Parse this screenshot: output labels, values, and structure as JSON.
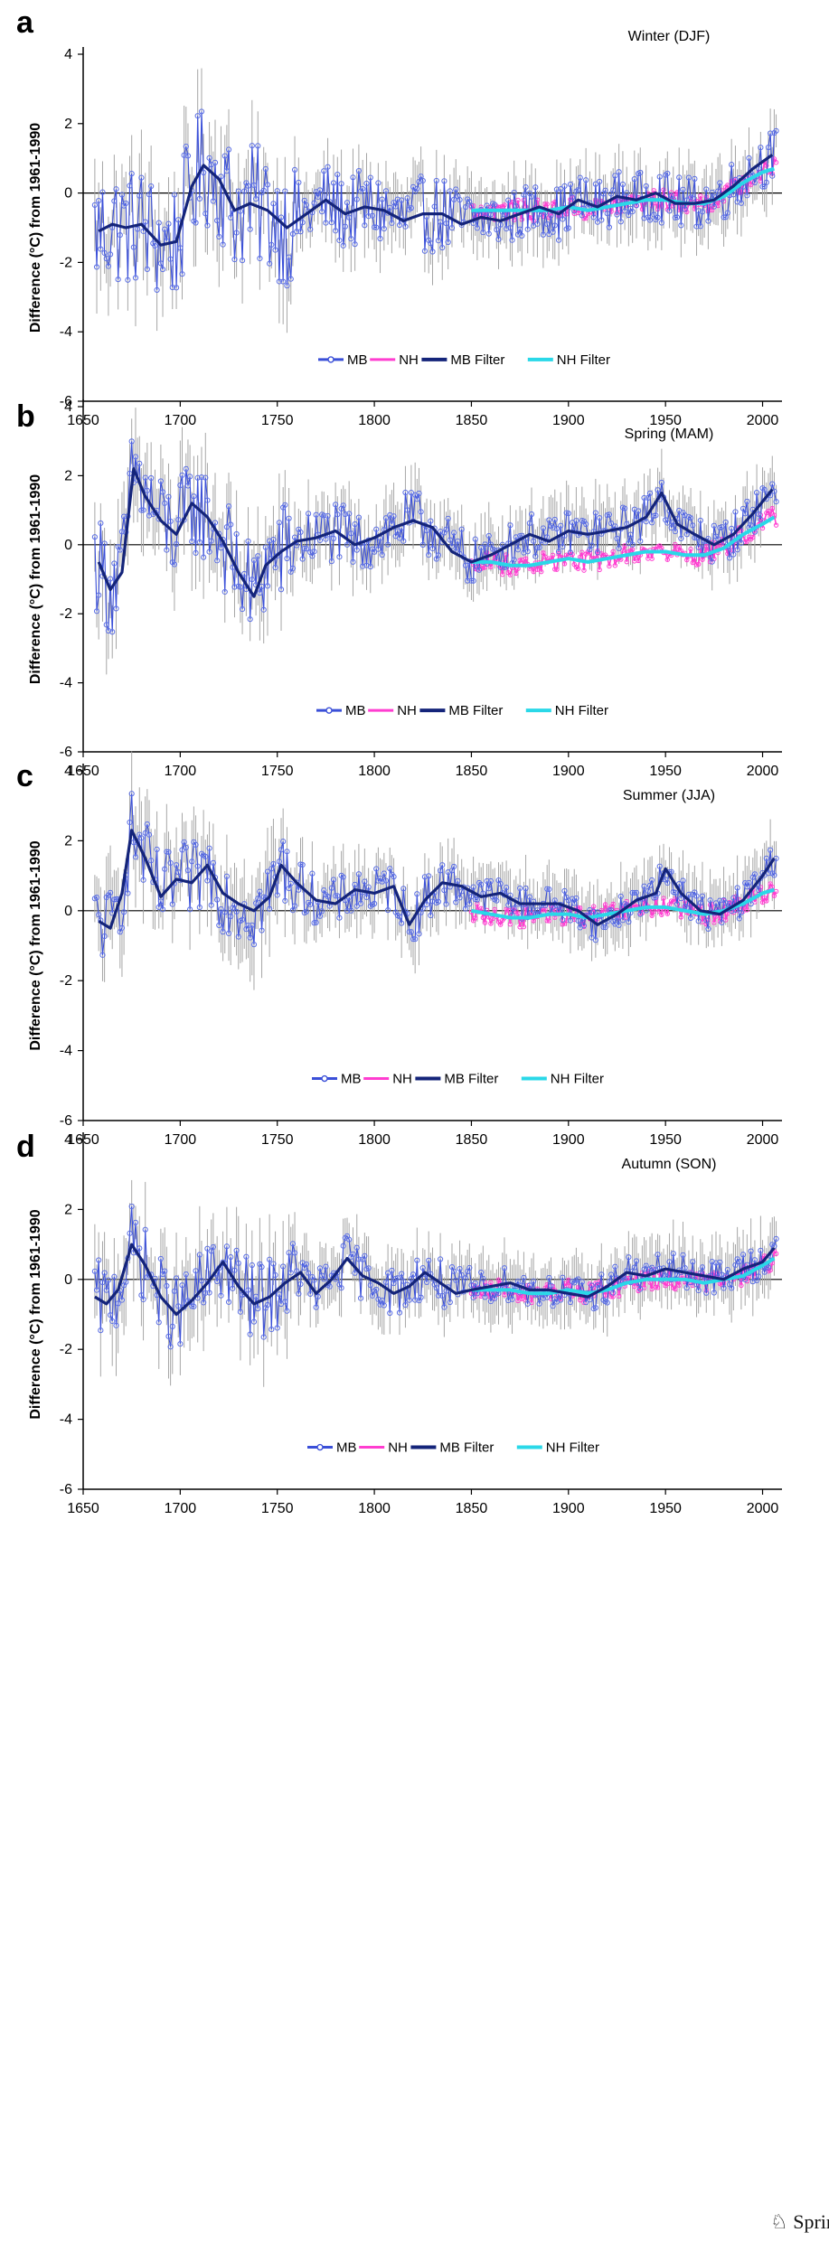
{
  "publisher": "Springer",
  "colors": {
    "mb": "#3a4fd8",
    "mb_marker": "#5b6fe4",
    "nh": "#ff3dd0",
    "mb_filter": "#14247a",
    "nh_filter": "#2ad8e8",
    "error_bar": "#a6a6a6",
    "axis": "#000000"
  },
  "chart_data": [
    {
      "panel": "a",
      "title": "Winter (DJF)",
      "type": "line",
      "ylabel": "Difference (°C) from 1961-1990",
      "xlim": [
        1650,
        2010
      ],
      "ylim": [
        -6,
        4
      ],
      "xticks": [
        1650,
        1700,
        1750,
        1800,
        1850,
        1900,
        1950,
        2000
      ],
      "yticks": [
        4,
        2,
        0,
        -2,
        -4,
        -6
      ],
      "grid": false,
      "legend_position": "bottom-center",
      "legend": [
        "MB",
        "NH",
        "MB Filter",
        "NH Filter"
      ],
      "series": [
        {
          "name": "MB Filter",
          "x": [
            1658,
            1665,
            1672,
            1680,
            1690,
            1698,
            1706,
            1712,
            1720,
            1728,
            1736,
            1745,
            1755,
            1765,
            1775,
            1785,
            1795,
            1805,
            1815,
            1825,
            1835,
            1845,
            1855,
            1865,
            1875,
            1885,
            1895,
            1905,
            1915,
            1925,
            1935,
            1945,
            1955,
            1965,
            1975,
            1985,
            1995,
            2005
          ],
          "y": [
            -1.1,
            -0.9,
            -1.0,
            -0.9,
            -1.5,
            -1.4,
            0.2,
            0.8,
            0.4,
            -0.5,
            -0.3,
            -0.5,
            -1.0,
            -0.6,
            -0.2,
            -0.6,
            -0.4,
            -0.5,
            -0.8,
            -0.6,
            -0.6,
            -0.9,
            -0.7,
            -0.8,
            -0.6,
            -0.4,
            -0.6,
            -0.2,
            -0.4,
            -0.1,
            -0.2,
            0.0,
            -0.3,
            -0.3,
            -0.2,
            0.2,
            0.7,
            1.1
          ]
        },
        {
          "name": "NH Filter",
          "x": [
            1850,
            1860,
            1870,
            1880,
            1890,
            1900,
            1910,
            1920,
            1930,
            1940,
            1950,
            1960,
            1970,
            1980,
            1990,
            2000,
            2006
          ],
          "y": [
            -0.5,
            -0.5,
            -0.5,
            -0.5,
            -0.5,
            -0.4,
            -0.5,
            -0.4,
            -0.3,
            -0.2,
            -0.2,
            -0.3,
            -0.3,
            -0.1,
            0.3,
            0.6,
            0.7
          ]
        }
      ]
    },
    {
      "panel": "b",
      "title": "Spring (MAM)",
      "type": "line",
      "ylabel": "Difference (°C) from 1961-1990",
      "xlim": [
        1650,
        2010
      ],
      "ylim": [
        -6,
        4
      ],
      "xticks": [
        1650,
        1700,
        1750,
        1800,
        1850,
        1900,
        1950,
        2000
      ],
      "yticks": [
        4,
        2,
        0,
        -2,
        -4,
        -6
      ],
      "grid": false,
      "legend_position": "bottom-center",
      "legend": [
        "MB",
        "NH",
        "MB Filter",
        "NH Filter"
      ],
      "series": [
        {
          "name": "MB Filter",
          "x": [
            1658,
            1664,
            1670,
            1676,
            1682,
            1690,
            1698,
            1706,
            1714,
            1722,
            1730,
            1738,
            1744,
            1752,
            1760,
            1770,
            1780,
            1790,
            1800,
            1810,
            1820,
            1830,
            1840,
            1850,
            1860,
            1870,
            1880,
            1890,
            1900,
            1910,
            1920,
            1930,
            1940,
            1948,
            1956,
            1965,
            1975,
            1985,
            1995,
            2005
          ],
          "y": [
            -0.5,
            -1.3,
            -0.8,
            2.2,
            1.4,
            0.7,
            0.3,
            1.2,
            0.8,
            0.1,
            -0.8,
            -1.5,
            -0.6,
            -0.2,
            0.1,
            0.2,
            0.4,
            0.0,
            0.2,
            0.5,
            0.7,
            0.5,
            -0.2,
            -0.5,
            -0.3,
            0.0,
            0.3,
            0.1,
            0.4,
            0.3,
            0.4,
            0.5,
            0.8,
            1.5,
            0.6,
            0.3,
            0.0,
            0.3,
            0.9,
            1.6
          ]
        },
        {
          "name": "NH Filter",
          "x": [
            1850,
            1860,
            1870,
            1880,
            1890,
            1900,
            1910,
            1920,
            1930,
            1940,
            1950,
            1960,
            1970,
            1980,
            1990,
            2000,
            2006
          ],
          "y": [
            -0.5,
            -0.5,
            -0.6,
            -0.6,
            -0.5,
            -0.4,
            -0.5,
            -0.4,
            -0.3,
            -0.2,
            -0.2,
            -0.3,
            -0.3,
            -0.1,
            0.3,
            0.6,
            0.8
          ]
        }
      ]
    },
    {
      "panel": "c",
      "title": "Summer (JJA)",
      "type": "line",
      "ylabel": "Difference (°C) from 1961-1990",
      "xlim": [
        1650,
        2010
      ],
      "ylim": [
        -6,
        4
      ],
      "xticks": [
        1650,
        1700,
        1750,
        1800,
        1850,
        1900,
        1950,
        2000
      ],
      "yticks": [
        4,
        2,
        0,
        -2,
        -4,
        -6
      ],
      "grid": false,
      "legend_position": "bottom-center",
      "legend": [
        "MB",
        "NH",
        "MB Filter",
        "NH Filter"
      ],
      "series": [
        {
          "name": "MB Filter",
          "x": [
            1658,
            1664,
            1670,
            1675,
            1682,
            1690,
            1698,
            1706,
            1714,
            1722,
            1730,
            1738,
            1746,
            1752,
            1760,
            1770,
            1780,
            1790,
            1800,
            1810,
            1818,
            1826,
            1835,
            1845,
            1855,
            1865,
            1875,
            1885,
            1895,
            1905,
            1915,
            1925,
            1935,
            1945,
            1950,
            1958,
            1968,
            1978,
            1990,
            2000,
            2006
          ],
          "y": [
            -0.3,
            -0.5,
            0.5,
            2.3,
            1.5,
            0.4,
            0.9,
            0.8,
            1.3,
            0.5,
            0.2,
            0.0,
            0.4,
            1.3,
            0.8,
            0.3,
            0.2,
            0.6,
            0.5,
            0.7,
            -0.4,
            0.3,
            0.8,
            0.7,
            0.4,
            0.5,
            0.2,
            0.2,
            0.2,
            0.0,
            -0.4,
            -0.1,
            0.3,
            0.5,
            1.2,
            0.5,
            0.0,
            -0.1,
            0.3,
            1.0,
            1.5
          ]
        },
        {
          "name": "NH Filter",
          "x": [
            1850,
            1860,
            1870,
            1880,
            1890,
            1900,
            1910,
            1920,
            1930,
            1940,
            1950,
            1960,
            1970,
            1980,
            1990,
            2000,
            2006
          ],
          "y": [
            0.0,
            -0.1,
            -0.2,
            -0.2,
            -0.1,
            -0.1,
            -0.2,
            -0.1,
            0.0,
            0.1,
            0.1,
            0.0,
            -0.1,
            0.0,
            0.2,
            0.5,
            0.6
          ]
        }
      ]
    },
    {
      "panel": "d",
      "title": "Autumn (SON)",
      "type": "line",
      "ylabel": "Difference (°C) from 1961-1990",
      "xlim": [
        1650,
        2010
      ],
      "ylim": [
        -6,
        4
      ],
      "xticks": [
        1650,
        1700,
        1750,
        1800,
        1850,
        1900,
        1950,
        2000
      ],
      "yticks": [
        4,
        2,
        0,
        -2,
        -4,
        -6
      ],
      "grid": false,
      "legend_position": "bottom-center",
      "legend": [
        "MB",
        "NH",
        "MB Filter",
        "NH Filter"
      ],
      "series": [
        {
          "name": "MB Filter",
          "x": [
            1656,
            1662,
            1668,
            1675,
            1682,
            1690,
            1698,
            1706,
            1714,
            1722,
            1730,
            1738,
            1746,
            1754,
            1762,
            1770,
            1778,
            1786,
            1794,
            1802,
            1810,
            1818,
            1826,
            1834,
            1842,
            1850,
            1860,
            1870,
            1880,
            1890,
            1900,
            1910,
            1920,
            1930,
            1940,
            1950,
            1960,
            1970,
            1980,
            1990,
            2000,
            2006
          ],
          "y": [
            -0.5,
            -0.7,
            -0.3,
            1.0,
            0.4,
            -0.5,
            -1.0,
            -0.6,
            -0.1,
            0.5,
            -0.2,
            -0.7,
            -0.5,
            -0.1,
            0.2,
            -0.4,
            0.0,
            0.6,
            0.1,
            -0.1,
            -0.4,
            -0.2,
            0.2,
            -0.1,
            -0.4,
            -0.3,
            -0.2,
            -0.1,
            -0.3,
            -0.3,
            -0.4,
            -0.5,
            -0.2,
            0.2,
            0.1,
            0.3,
            0.2,
            0.1,
            0.0,
            0.3,
            0.5,
            0.9
          ]
        },
        {
          "name": "NH Filter",
          "x": [
            1850,
            1860,
            1870,
            1880,
            1890,
            1900,
            1910,
            1920,
            1930,
            1940,
            1950,
            1960,
            1970,
            1980,
            1990,
            2000,
            2006
          ],
          "y": [
            -0.3,
            -0.3,
            -0.3,
            -0.4,
            -0.4,
            -0.3,
            -0.4,
            -0.3,
            -0.1,
            0.0,
            0.0,
            0.0,
            -0.1,
            0.0,
            0.1,
            0.4,
            0.6
          ]
        }
      ]
    }
  ]
}
